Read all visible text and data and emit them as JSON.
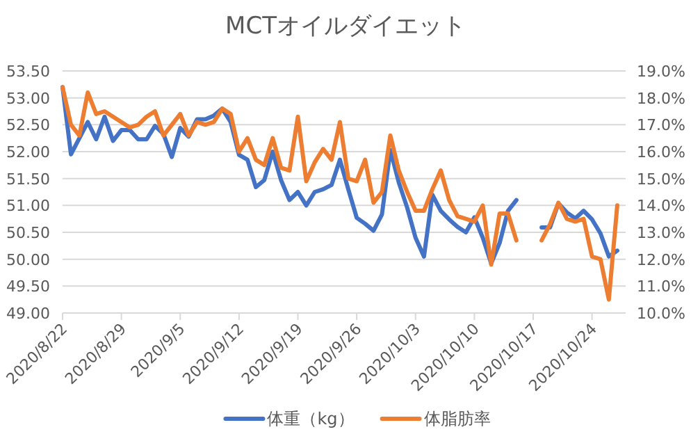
{
  "chart_data": {
    "type": "line",
    "title": "MCTオイルダイエット",
    "x": [
      "2020-08-22",
      "2020-08-23",
      "2020-08-24",
      "2020-08-25",
      "2020-08-26",
      "2020-08-27",
      "2020-08-28",
      "2020-08-29",
      "2020-08-30",
      "2020-08-31",
      "2020-09-01",
      "2020-09-02",
      "2020-09-03",
      "2020-09-04",
      "2020-09-05",
      "2020-09-06",
      "2020-09-07",
      "2020-09-08",
      "2020-09-09",
      "2020-09-10",
      "2020-09-11",
      "2020-09-12",
      "2020-09-13",
      "2020-09-14",
      "2020-09-15",
      "2020-09-16",
      "2020-09-17",
      "2020-09-18",
      "2020-09-19",
      "2020-09-20",
      "2020-09-21",
      "2020-09-22",
      "2020-09-23",
      "2020-09-24",
      "2020-09-25",
      "2020-09-26",
      "2020-09-27",
      "2020-09-28",
      "2020-09-29",
      "2020-09-30",
      "2020-10-01",
      "2020-10-02",
      "2020-10-03",
      "2020-10-04",
      "2020-10-05",
      "2020-10-06",
      "2020-10-07",
      "2020-10-08",
      "2020-10-09",
      "2020-10-10",
      "2020-10-11",
      "2020-10-12",
      "2020-10-13",
      "2020-10-14",
      "2020-10-15",
      "2020-10-16",
      "2020-10-17",
      "2020-10-18",
      "2020-10-19",
      "2020-10-20",
      "2020-10-21",
      "2020-10-22",
      "2020-10-23",
      "2020-10-24",
      "2020-10-25",
      "2020-10-26",
      "2020-10-27"
    ],
    "series": [
      {
        "name": "体重（kg）",
        "color": "#4472c4",
        "values": [
          53.2,
          51.95,
          52.25,
          52.55,
          52.23,
          52.65,
          52.2,
          52.4,
          52.4,
          52.23,
          52.23,
          52.48,
          52.33,
          51.9,
          52.44,
          52.28,
          52.6,
          52.6,
          52.67,
          52.8,
          52.55,
          51.94,
          51.85,
          51.34,
          51.47,
          52.0,
          51.47,
          51.1,
          51.25,
          51.0,
          51.25,
          51.3,
          51.38,
          51.85,
          51.3,
          50.77,
          50.66,
          50.53,
          50.83,
          52.03,
          51.43,
          50.96,
          50.4,
          50.05,
          51.2,
          50.9,
          50.74,
          50.6,
          50.5,
          50.78,
          50.4,
          49.92,
          50.3,
          50.9,
          51.1,
          null,
          null,
          50.59,
          50.59,
          51.04,
          50.87,
          50.76,
          50.9,
          50.74,
          50.48,
          50.05,
          50.16
        ]
      },
      {
        "name": "体脂肪率",
        "color": "#ed7d31",
        "axis": "y2",
        "values": [
          18.4,
          17.0,
          16.6,
          18.2,
          17.4,
          17.5,
          17.3,
          17.1,
          16.9,
          17.0,
          17.3,
          17.5,
          16.6,
          17.0,
          17.4,
          16.6,
          17.1,
          17.0,
          17.1,
          17.6,
          17.4,
          16.0,
          16.5,
          15.7,
          15.5,
          16.5,
          15.4,
          15.3,
          17.3,
          14.9,
          15.6,
          16.1,
          15.7,
          17.1,
          15.0,
          14.9,
          15.7,
          14.1,
          14.5,
          16.6,
          15.3,
          14.5,
          13.8,
          13.8,
          14.6,
          15.3,
          14.2,
          13.6,
          13.5,
          13.4,
          14.0,
          11.8,
          13.7,
          13.7,
          12.7,
          null,
          null,
          12.7,
          13.3,
          14.1,
          13.5,
          13.4,
          13.5,
          12.1,
          12.0,
          10.5,
          14.0
        ]
      }
    ],
    "xlim": [
      "2020-08-22",
      "2020-10-28"
    ],
    "xticks": [
      {
        "value": "2020-08-22",
        "label": "2020/8/22"
      },
      {
        "value": "2020-08-29",
        "label": "2020/8/29"
      },
      {
        "value": "2020-09-05",
        "label": "2020/9/5"
      },
      {
        "value": "2020-09-12",
        "label": "2020/9/12"
      },
      {
        "value": "2020-09-19",
        "label": "2020/9/19"
      },
      {
        "value": "2020-09-26",
        "label": "2020/9/26"
      },
      {
        "value": "2020-10-03",
        "label": "2020/10/3"
      },
      {
        "value": "2020-10-10",
        "label": "2020/10/10"
      },
      {
        "value": "2020-10-17",
        "label": "2020/10/17"
      },
      {
        "value": "2020-10-24",
        "label": "2020/10/24"
      }
    ],
    "ylim": [
      49,
      53.5
    ],
    "yticks": [
      {
        "value": 49,
        "label": "49.00"
      },
      {
        "value": 49.5,
        "label": "49.50"
      },
      {
        "value": 50,
        "label": "50.00"
      },
      {
        "value": 50.5,
        "label": "50.50"
      },
      {
        "value": 51,
        "label": "51.00"
      },
      {
        "value": 51.5,
        "label": "51.50"
      },
      {
        "value": 52,
        "label": "52.00"
      },
      {
        "value": 52.5,
        "label": "52.50"
      },
      {
        "value": 53,
        "label": "53.00"
      },
      {
        "value": 53.5,
        "label": "53.50"
      }
    ],
    "y2lim": [
      10,
      19
    ],
    "y2ticks": [
      {
        "value": 10,
        "label": "10.0%"
      },
      {
        "value": 11,
        "label": "11.0%"
      },
      {
        "value": 12,
        "label": "12.0%"
      },
      {
        "value": 13,
        "label": "13.0%"
      },
      {
        "value": 14,
        "label": "14.0%"
      },
      {
        "value": 15,
        "label": "15.0%"
      },
      {
        "value": 16,
        "label": "16.0%"
      },
      {
        "value": 17,
        "label": "17.0%"
      },
      {
        "value": 18,
        "label": "18.0%"
      },
      {
        "value": 19,
        "label": "19.0%"
      }
    ],
    "grid": "y",
    "legend": "bottom",
    "line_style": "solid"
  }
}
